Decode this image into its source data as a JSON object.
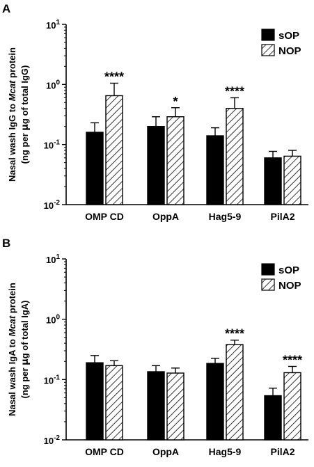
{
  "chart_data": [
    {
      "panel": "A",
      "type": "bar",
      "yscale": "log",
      "ylim": [
        0.01,
        10
      ],
      "yticks": [
        {
          "value": 10,
          "base": "10",
          "exp": "1"
        },
        {
          "value": 1,
          "base": "10",
          "exp": "0"
        },
        {
          "value": 0.1,
          "base": "10",
          "exp": "-1"
        },
        {
          "value": 0.01,
          "base": "10",
          "exp": "-2"
        }
      ],
      "ylabel_line1_pre": "Nasal wash IgG  to ",
      "ylabel_line1_italic": "Mcat",
      "ylabel_line1_post": " protein",
      "ylabel_line2_pre": "(ng per ",
      "ylabel_line2_mu": "μ",
      "ylabel_line2_post": "g of total IgG)",
      "categories": [
        "OMP CD",
        "OppA",
        "Hag5-9",
        "PilA2"
      ],
      "series": [
        {
          "name": "sOP",
          "fill": "solid",
          "values": [
            0.16,
            0.2,
            0.14,
            0.06
          ],
          "err_upper": [
            0.23,
            0.29,
            0.19,
            0.077
          ]
        },
        {
          "name": "NOP",
          "fill": "hatched",
          "values": [
            0.65,
            0.29,
            0.4,
            0.064
          ],
          "err_upper": [
            1.05,
            0.41,
            0.6,
            0.08
          ]
        }
      ],
      "significance": [
        "****",
        "*",
        "****",
        ""
      ],
      "legend_position": "top-right"
    },
    {
      "panel": "B",
      "type": "bar",
      "yscale": "log",
      "ylim": [
        0.01,
        10
      ],
      "yticks": [
        {
          "value": 10,
          "base": "10",
          "exp": "1"
        },
        {
          "value": 1,
          "base": "10",
          "exp": "0"
        },
        {
          "value": 0.1,
          "base": "10",
          "exp": "-1"
        },
        {
          "value": 0.01,
          "base": "10",
          "exp": "-2"
        }
      ],
      "ylabel_line1_pre": "Nasal wash IgA  to ",
      "ylabel_line1_italic": "Mcat",
      "ylabel_line1_post": " protein",
      "ylabel_line2_pre": "(ng per ",
      "ylabel_line2_mu": "μ",
      "ylabel_line2_post": "g of total IgA)",
      "categories": [
        "OMP CD",
        "OppA",
        "Hag5-9",
        "PilA2"
      ],
      "series": [
        {
          "name": "sOP",
          "fill": "solid",
          "values": [
            0.19,
            0.135,
            0.185,
            0.054
          ],
          "err_upper": [
            0.25,
            0.17,
            0.225,
            0.072
          ]
        },
        {
          "name": "NOP",
          "fill": "hatched",
          "values": [
            0.17,
            0.128,
            0.38,
            0.13
          ],
          "err_upper": [
            0.205,
            0.155,
            0.45,
            0.165
          ]
        }
      ],
      "significance": [
        "",
        "",
        "****",
        "****"
      ],
      "legend_position": "top-right"
    }
  ]
}
